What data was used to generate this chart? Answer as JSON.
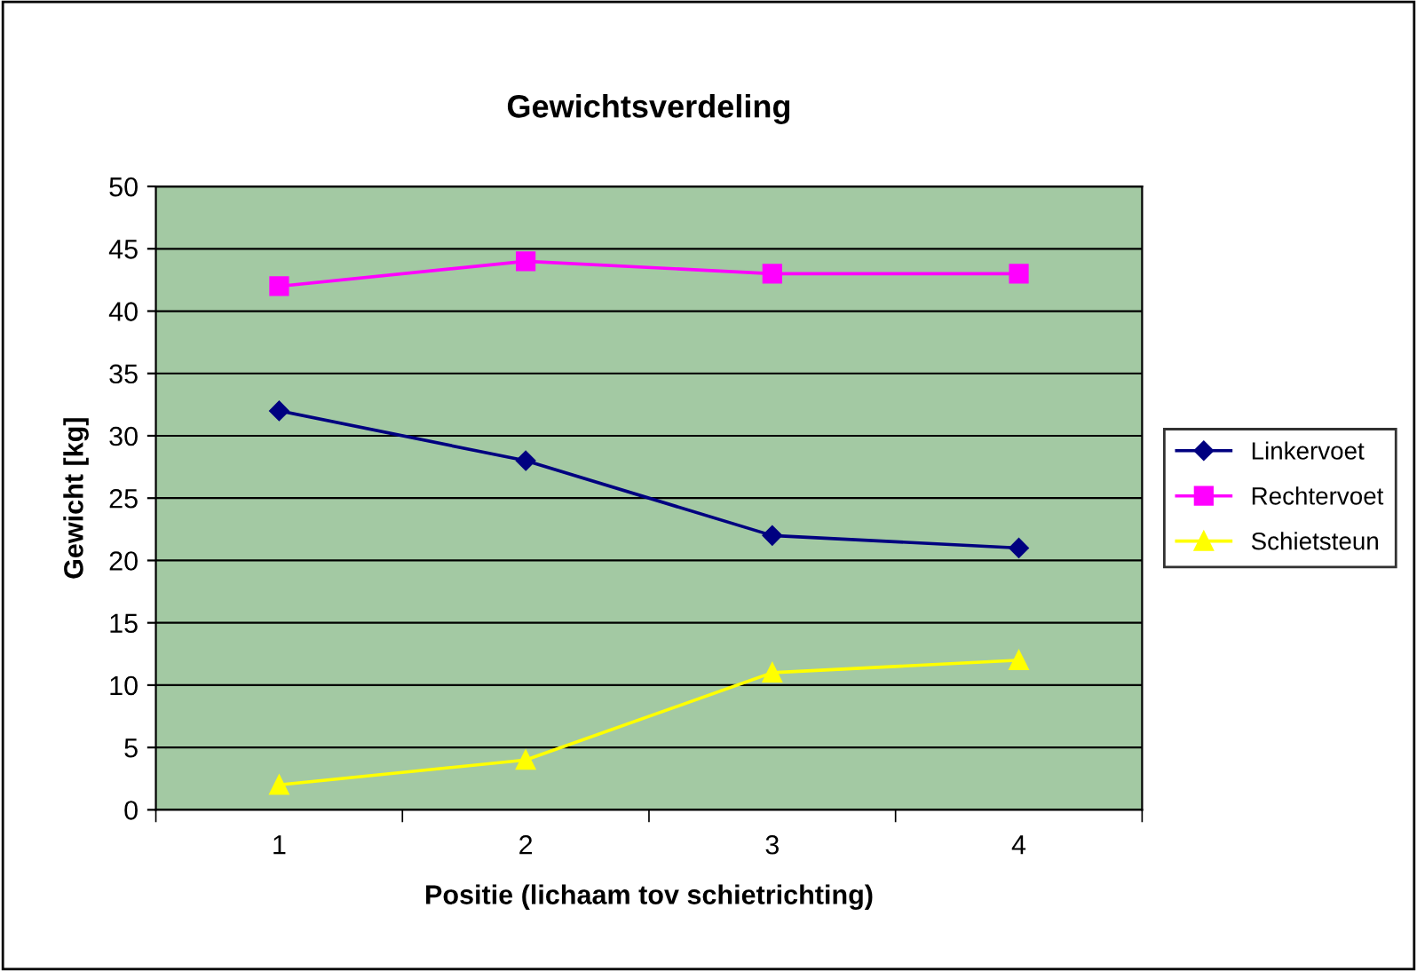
{
  "chart_data": {
    "type": "line",
    "title": "Gewichtsverdeling",
    "xlabel": "Positie (lichaam tov schietrichting)",
    "ylabel": "Gewicht [kg]",
    "categories": [
      "1",
      "2",
      "3",
      "4"
    ],
    "series": [
      {
        "name": "Linkervoet",
        "color": "#000080",
        "values": [
          32,
          28,
          22,
          21
        ],
        "marker": "diamond"
      },
      {
        "name": "Rechtervoet",
        "color": "#ff00ff",
        "values": [
          42,
          44,
          43,
          43
        ],
        "marker": "square"
      },
      {
        "name": "Schietsteun",
        "color": "#ffff00",
        "values": [
          2,
          4,
          11,
          12
        ],
        "marker": "triangle"
      }
    ],
    "ylim": [
      0,
      50
    ],
    "yticks": [
      0,
      5,
      10,
      15,
      20,
      25,
      30,
      35,
      40,
      45,
      50
    ],
    "grid": "y",
    "legend": "right",
    "line_style": "solid"
  }
}
